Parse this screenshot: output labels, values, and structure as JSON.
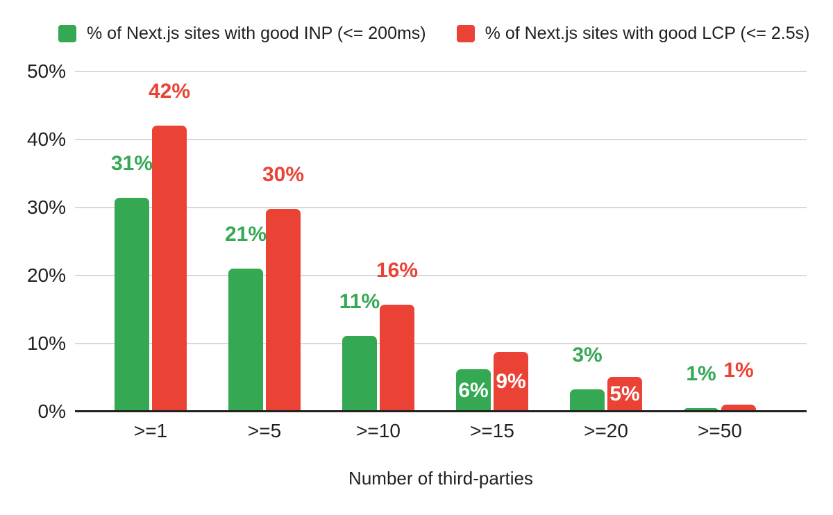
{
  "colors": {
    "green": "#34a853",
    "red": "#ea4335",
    "grid": "#d9d9d9",
    "axis_line": "#212121",
    "text": "#1f1f1f",
    "inside_label": "#ffffff",
    "background": "#ffffff"
  },
  "legend": {
    "items": [
      {
        "label": "% of Next.js sites with good INP (<= 200ms)",
        "color": "#34a853"
      },
      {
        "label": "% of Next.js sites with good LCP (<= 2.5s)",
        "color": "#ea4335"
      }
    ]
  },
  "chart_data": {
    "type": "bar",
    "xlabel": "Number of third-parties",
    "ylabel": "",
    "ylim": [
      0,
      50
    ],
    "ytick_labels": [
      "0%",
      "10%",
      "20%",
      "30%",
      "40%",
      "50%"
    ],
    "grid": true,
    "legend_position": "top",
    "categories": [
      ">=1",
      ">=5",
      ">=10",
      ">=15",
      ">=20",
      ">=50"
    ],
    "series": [
      {
        "name": "% of Next.js sites with good INP (<= 200ms)",
        "color": "#34a853",
        "values": [
          31.4,
          21.0,
          11.1,
          6.2,
          3.3,
          0.5
        ],
        "labels": [
          "31%",
          "21%",
          "11%",
          "6%",
          "3%",
          "1%"
        ],
        "label_placement": [
          "above",
          "above",
          "above",
          "inside",
          "above",
          "above"
        ]
      },
      {
        "name": "% of Next.js sites with good LCP (<= 2.5s)",
        "color": "#ea4335",
        "values": [
          42.0,
          29.8,
          15.7,
          8.8,
          5.1,
          1.0
        ],
        "labels": [
          "42%",
          "30%",
          "16%",
          "9%",
          "5%",
          "1%"
        ],
        "label_placement": [
          "above",
          "above",
          "above",
          "inside",
          "inside",
          "above"
        ]
      }
    ]
  }
}
